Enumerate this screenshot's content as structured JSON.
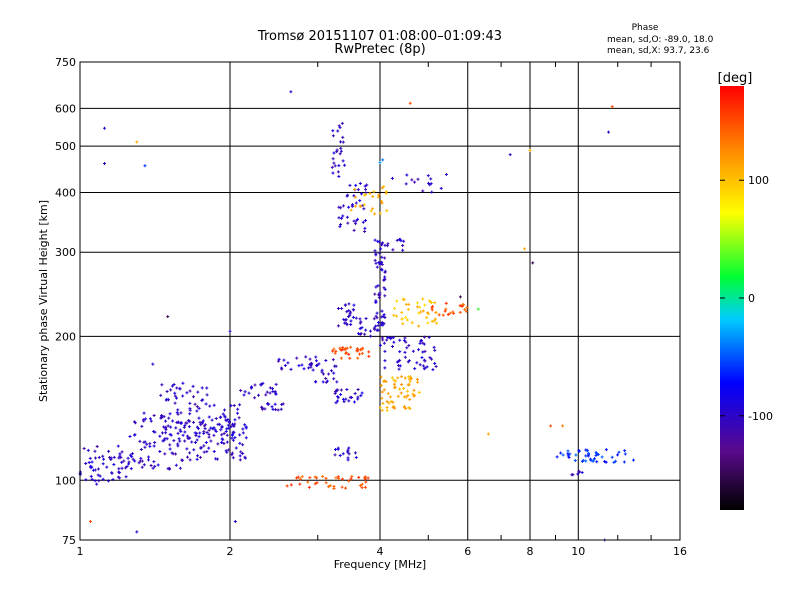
{
  "header": {
    "title_line1": "Tromsø 20151107 01:08:00–01:09:43",
    "title_line2": "RwPretec (8p)",
    "phase_heading": "Phase",
    "phase_stats_o": "mean, sd,O: -89.0, 18.0",
    "phase_stats_x": "mean, sd,X: 93.7, 23.6"
  },
  "chart_data": {
    "type": "scatter",
    "xlabel": "Frequency [MHz]",
    "ylabel": "Stationary phase Virtual Height [km]",
    "x_scale": "log",
    "y_scale": "log",
    "xlim": [
      1,
      16
    ],
    "ylim": [
      75,
      750
    ],
    "x_ticks": [
      1,
      2,
      4,
      6,
      8,
      10,
      16
    ],
    "x_tick_labels": [
      "1",
      "2",
      "4",
      "6",
      "8",
      "10",
      "16"
    ],
    "y_ticks": [
      75,
      100,
      200,
      300,
      400,
      500,
      600,
      750
    ],
    "y_tick_labels": [
      "75",
      "100",
      "200",
      "300",
      "400",
      "500",
      "600",
      "750"
    ],
    "grid": true,
    "colorbar": {
      "label": "[deg]",
      "range": [
        -180,
        180
      ],
      "ticks": [
        -100,
        0,
        100
      ],
      "tick_labels": [
        "-100",
        "0",
        "100"
      ]
    },
    "clusters": [
      {
        "x0": 1.0,
        "x1": 1.25,
        "y0": 98,
        "y1": 118,
        "n": 60,
        "phase": -100
      },
      {
        "x0": 1.25,
        "x1": 1.6,
        "y0": 105,
        "y1": 140,
        "n": 90,
        "phase": -100
      },
      {
        "x0": 1.45,
        "x1": 1.8,
        "y0": 125,
        "y1": 160,
        "n": 60,
        "phase": -100
      },
      {
        "x0": 1.6,
        "x1": 2.2,
        "y0": 110,
        "y1": 135,
        "n": 90,
        "phase": -100
      },
      {
        "x0": 1.8,
        "x1": 2.1,
        "y0": 120,
        "y1": 145,
        "n": 40,
        "phase": -100
      },
      {
        "x0": 2.1,
        "x1": 2.5,
        "y0": 148,
        "y1": 160,
        "n": 25,
        "phase": -100
      },
      {
        "x0": 2.3,
        "x1": 2.6,
        "y0": 138,
        "y1": 145,
        "n": 15,
        "phase": -100
      },
      {
        "x0": 2.5,
        "x1": 3.0,
        "y0": 170,
        "y1": 185,
        "n": 20,
        "phase": -100
      },
      {
        "x0": 2.9,
        "x1": 3.3,
        "y0": 160,
        "y1": 180,
        "n": 25,
        "phase": -100
      },
      {
        "x0": 3.2,
        "x1": 3.7,
        "y0": 145,
        "y1": 155,
        "n": 25,
        "phase": -100
      },
      {
        "x0": 3.2,
        "x1": 3.8,
        "y0": 180,
        "y1": 190,
        "n": 30,
        "phase": 150
      },
      {
        "x0": 3.3,
        "x1": 3.6,
        "y0": 210,
        "y1": 235,
        "n": 25,
        "phase": -100
      },
      {
        "x0": 3.6,
        "x1": 4.0,
        "y0": 200,
        "y1": 220,
        "n": 20,
        "phase": -100
      },
      {
        "x0": 3.9,
        "x1": 4.1,
        "y0": 210,
        "y1": 320,
        "n": 60,
        "phase": -100
      },
      {
        "x0": 3.3,
        "x1": 3.8,
        "y0": 330,
        "y1": 420,
        "n": 40,
        "phase": -100
      },
      {
        "x0": 3.2,
        "x1": 3.4,
        "y0": 430,
        "y1": 560,
        "n": 25,
        "phase": -100
      },
      {
        "x0": 3.5,
        "x1": 4.2,
        "y0": 360,
        "y1": 420,
        "n": 25,
        "phase": 110
      },
      {
        "x0": 4.0,
        "x1": 4.8,
        "y0": 140,
        "y1": 165,
        "n": 60,
        "phase": 110
      },
      {
        "x0": 4.0,
        "x1": 5.2,
        "y0": 170,
        "y1": 200,
        "n": 60,
        "phase": -100
      },
      {
        "x0": 4.2,
        "x1": 5.2,
        "y0": 210,
        "y1": 240,
        "n": 40,
        "phase": 100
      },
      {
        "x0": 5.0,
        "x1": 6.0,
        "y0": 215,
        "y1": 235,
        "n": 20,
        "phase": 150
      },
      {
        "x0": 4.1,
        "x1": 4.5,
        "y0": 300,
        "y1": 320,
        "n": 10,
        "phase": -100
      },
      {
        "x0": 4.2,
        "x1": 5.5,
        "y0": 400,
        "y1": 440,
        "n": 15,
        "phase": -100
      },
      {
        "x0": 2.6,
        "x1": 3.8,
        "y0": 96,
        "y1": 102,
        "n": 40,
        "phase": 150
      },
      {
        "x0": 3.2,
        "x1": 3.6,
        "y0": 110,
        "y1": 117,
        "n": 15,
        "phase": -100
      },
      {
        "x0": 9.0,
        "x1": 13.0,
        "y0": 109,
        "y1": 116,
        "n": 45,
        "phase": -60
      },
      {
        "x0": 9.5,
        "x1": 10.2,
        "y0": 102,
        "y1": 106,
        "n": 6,
        "phase": -100
      }
    ],
    "isolated_points": [
      {
        "x": 1.12,
        "y": 545,
        "phase": -100
      },
      {
        "x": 1.12,
        "y": 460,
        "phase": -100
      },
      {
        "x": 1.3,
        "y": 510,
        "phase": 110
      },
      {
        "x": 1.35,
        "y": 455,
        "phase": -60
      },
      {
        "x": 2.65,
        "y": 650,
        "phase": -100
      },
      {
        "x": 4.6,
        "y": 615,
        "phase": 150
      },
      {
        "x": 4.0,
        "y": 462,
        "phase": -30
      },
      {
        "x": 4.05,
        "y": 468,
        "phase": -40
      },
      {
        "x": 7.3,
        "y": 480,
        "phase": -100
      },
      {
        "x": 8.0,
        "y": 490,
        "phase": 110
      },
      {
        "x": 8.1,
        "y": 285,
        "phase": -150
      },
      {
        "x": 7.8,
        "y": 305,
        "phase": 110
      },
      {
        "x": 11.5,
        "y": 535,
        "phase": -100
      },
      {
        "x": 11.7,
        "y": 605,
        "phase": 150
      },
      {
        "x": 8.8,
        "y": 130,
        "phase": 150
      },
      {
        "x": 9.3,
        "y": 130,
        "phase": 130
      },
      {
        "x": 6.6,
        "y": 125,
        "phase": 110
      },
      {
        "x": 1.5,
        "y": 220,
        "phase": -150
      },
      {
        "x": 2.0,
        "y": 205,
        "phase": -100
      },
      {
        "x": 1.4,
        "y": 175,
        "phase": -100
      },
      {
        "x": 2.05,
        "y": 82,
        "phase": -100
      },
      {
        "x": 1.05,
        "y": 82,
        "phase": 150
      },
      {
        "x": 1.3,
        "y": 78,
        "phase": -100
      },
      {
        "x": 11.3,
        "y": 75,
        "phase": -100
      },
      {
        "x": 6.3,
        "y": 228,
        "phase": 30
      },
      {
        "x": 5.8,
        "y": 242,
        "phase": -150
      }
    ]
  }
}
